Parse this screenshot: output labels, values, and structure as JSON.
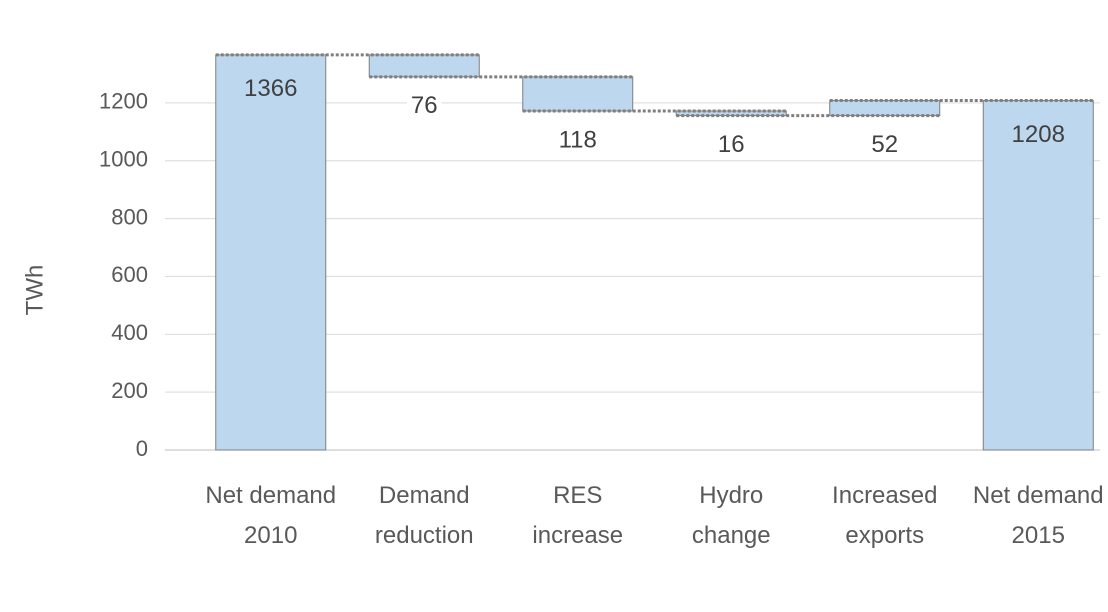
{
  "chart_data": {
    "type": "waterfall",
    "categories": [
      "Net demand 2010",
      "Demand reduction",
      "RES increase",
      "Hydro change",
      "Increased exports",
      "Net demand 2015"
    ],
    "measure": [
      "absolute",
      "relative",
      "relative",
      "relative",
      "relative",
      "absolute"
    ],
    "values": [
      1366,
      -76,
      -118,
      -16,
      52,
      1208
    ],
    "value_labels": [
      "1366",
      "76",
      "118",
      "16",
      "52",
      "1208"
    ],
    "color": "#bdd7ee",
    "y_label": "TWh",
    "ylim": [
      0,
      1400
    ],
    "yticks": [
      0,
      200,
      400,
      600,
      800,
      1000,
      1200
    ],
    "grid": true
  }
}
